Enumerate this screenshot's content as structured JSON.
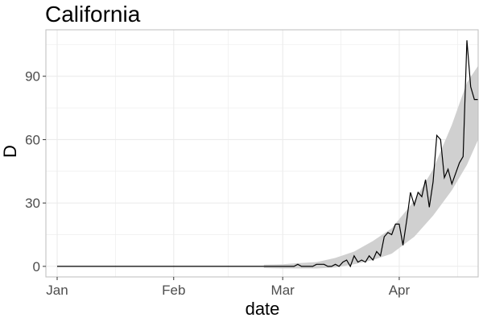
{
  "chart_data": {
    "type": "line",
    "title": "California",
    "xlabel": "date",
    "ylabel": "D",
    "xlim": [
      "2019-12-29",
      "2020-04-22"
    ],
    "ylim": [
      -5,
      112
    ],
    "x_ticks": [
      {
        "date": "2020-01-01",
        "label": "Jan"
      },
      {
        "date": "2020-02-01",
        "label": "Feb"
      },
      {
        "date": "2020-03-01",
        "label": "Mar"
      },
      {
        "date": "2020-04-01",
        "label": "Apr"
      }
    ],
    "y_ticks": [
      0,
      30,
      60,
      90
    ],
    "grid": true,
    "legend": "none",
    "colors": {
      "line": "#000000",
      "band": "#d0d0d0",
      "grid": "#ebebeb",
      "border": "#bdbdbd"
    },
    "series": [
      {
        "x": [
          "2020-01-01",
          "2020-01-15",
          "2020-02-01",
          "2020-02-15",
          "2020-03-01",
          "2020-03-04",
          "2020-03-05",
          "2020-03-06",
          "2020-03-07",
          "2020-03-08",
          "2020-03-09",
          "2020-03-10",
          "2020-03-11",
          "2020-03-12",
          "2020-03-13",
          "2020-03-14",
          "2020-03-15",
          "2020-03-16",
          "2020-03-17",
          "2020-03-18",
          "2020-03-19",
          "2020-03-20",
          "2020-03-21",
          "2020-03-22",
          "2020-03-23",
          "2020-03-24",
          "2020-03-25",
          "2020-03-26",
          "2020-03-27",
          "2020-03-28",
          "2020-03-29",
          "2020-03-30",
          "2020-03-31",
          "2020-04-01",
          "2020-04-02",
          "2020-04-03",
          "2020-04-04",
          "2020-04-05",
          "2020-04-06",
          "2020-04-07",
          "2020-04-08",
          "2020-04-09",
          "2020-04-10",
          "2020-04-11",
          "2020-04-12",
          "2020-04-13",
          "2020-04-14",
          "2020-04-15",
          "2020-04-16",
          "2020-04-17",
          "2020-04-18",
          "2020-04-19",
          "2020-04-20",
          "2020-04-21",
          "2020-04-22"
        ],
        "values": [
          0,
          0,
          0,
          0,
          0,
          0,
          1,
          0,
          0,
          0,
          0,
          1,
          1,
          1,
          0,
          0,
          1,
          0,
          2,
          3,
          0,
          5,
          2,
          3,
          2,
          5,
          3,
          7,
          5,
          14,
          16,
          15,
          20,
          20,
          10,
          22,
          35,
          29,
          35,
          33,
          41,
          28,
          40,
          62,
          60,
          42,
          46,
          39,
          44,
          49,
          52,
          107,
          85,
          79,
          79
        ]
      }
    ],
    "band": {
      "x": [
        "2020-02-25",
        "2020-03-01",
        "2020-03-05",
        "2020-03-10",
        "2020-03-15",
        "2020-03-20",
        "2020-03-25",
        "2020-03-30",
        "2020-04-05",
        "2020-04-10",
        "2020-04-15",
        "2020-04-19",
        "2020-04-22"
      ],
      "upper": [
        0.8,
        1,
        1.5,
        2,
        4,
        7,
        12,
        18,
        31,
        46,
        67,
        87,
        95
      ],
      "lower": [
        -0.8,
        -1,
        -1,
        -1,
        -0.5,
        1,
        3,
        6,
        14,
        24,
        36,
        48,
        60
      ]
    }
  }
}
